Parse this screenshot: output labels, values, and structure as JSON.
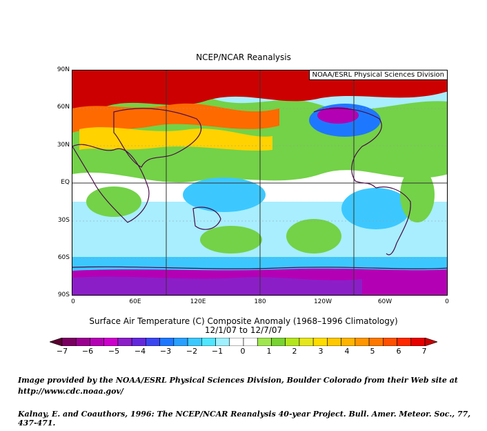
{
  "title": "NCEP/NCAR Reanalysis",
  "badge": "NOAA/ESRL Physical Sciences Division",
  "lat_labels": [
    "90N",
    "60N",
    "30N",
    "EQ",
    "30S",
    "60S",
    "90S"
  ],
  "lon_labels": [
    "0",
    "60E",
    "120E",
    "180",
    "120W",
    "60W",
    "0"
  ],
  "caption": {
    "line1": "Surface Air Temperature (C) Composite Anomaly (1968–1996 Climatology)",
    "line2": "12/1/07  to 12/7/07"
  },
  "colorbar": {
    "ticks": [
      "−7",
      "−6",
      "−5",
      "−4",
      "−3",
      "−2",
      "−1",
      "0",
      "1",
      "2",
      "3",
      "4",
      "5",
      "6",
      "7"
    ],
    "colors": [
      "#5a0030",
      "#7a0060",
      "#9a0090",
      "#b400b4",
      "#cc00cc",
      "#8c1ec8",
      "#6428dc",
      "#3c46f0",
      "#1e78ff",
      "#28a0ff",
      "#3cc8ff",
      "#50e6ff",
      "#a0f0ff",
      "#ffffff",
      "#ffffff",
      "#a0e650",
      "#78d232",
      "#b4e61e",
      "#e6e61e",
      "#ffdc00",
      "#ffc800",
      "#ffb400",
      "#ff9600",
      "#ff7800",
      "#ff5000",
      "#ff2800",
      "#e60000",
      "#c80000"
    ]
  },
  "credits": {
    "line1": "Image provided by the NOAA/ESRL Physical Sciences Division, Boulder Colorado from their Web site at",
    "line2": "http://www.cdc.noaa.gov/",
    "line3": "Kalnay, E. and Coauthors, 1996: The NCEP/NCAR Reanalysis 40-year Project. Bull. Amer. Meteor. Soc., 77, 437-471."
  },
  "map_colors": {
    "warm_strong": "#cc0000",
    "warm": "#ff6a00",
    "mild_warm": "#ffd200",
    "slight_warm": "#73d247",
    "neutral": "#ffffff",
    "slight_cool": "#a8eeff",
    "cool": "#3cc8ff",
    "cold": "#1e78ff",
    "very_cold": "#b400b4",
    "coast": "#4a0a4a"
  }
}
